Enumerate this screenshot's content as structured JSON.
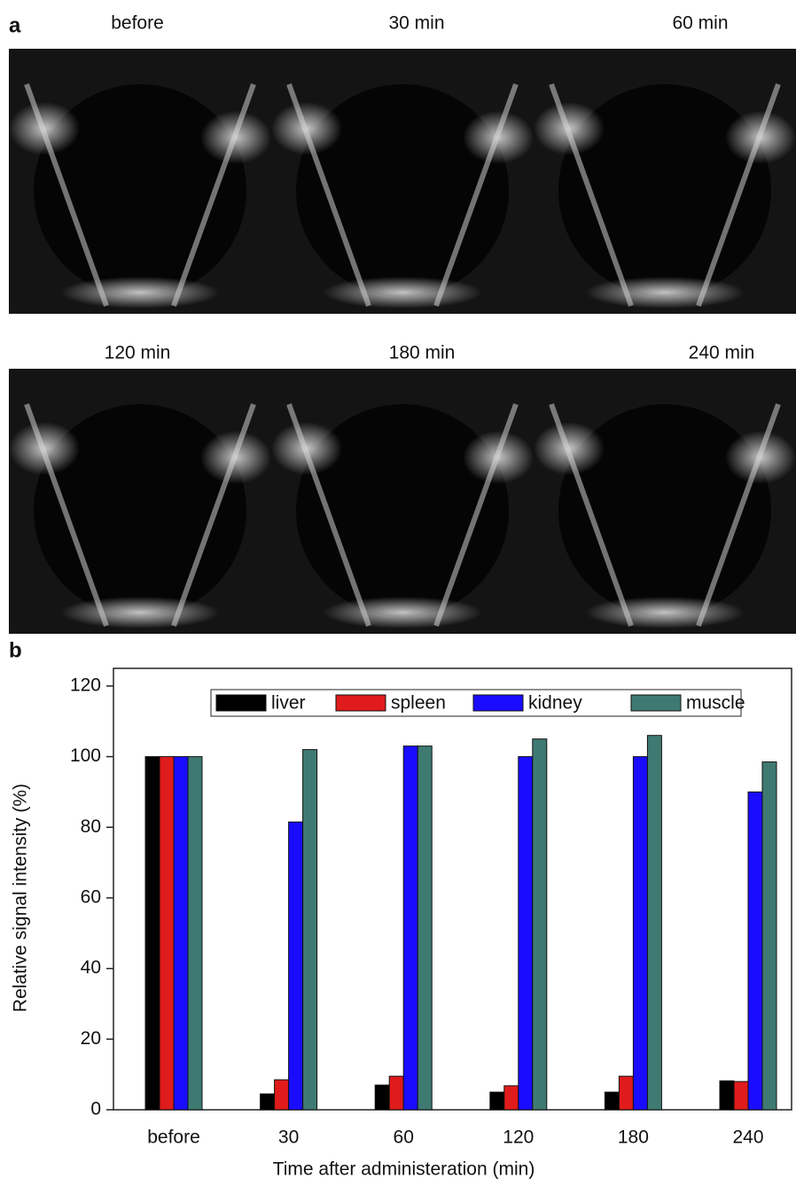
{
  "panel_a": {
    "label": "a",
    "titles": [
      "before",
      "30 min",
      "60 min",
      "120 min",
      "180 min",
      "240 min"
    ]
  },
  "panel_b": {
    "label": "b"
  },
  "chart_data": {
    "type": "bar",
    "x_label": "Time after administeration (min)",
    "y_label": "Relative signal intensity (%)",
    "categories": [
      "before",
      "30",
      "60",
      "120",
      "180",
      "240"
    ],
    "series": [
      {
        "name": "liver",
        "color": "#000000",
        "values": [
          100,
          4.5,
          7,
          5,
          5,
          8.2
        ]
      },
      {
        "name": "spleen",
        "color": "#e01b1b",
        "values": [
          100,
          8.5,
          9.5,
          6.8,
          9.5,
          8
        ]
      },
      {
        "name": "kidney",
        "color": "#1a0dff",
        "values": [
          100,
          81.5,
          103,
          100,
          100,
          90
        ]
      },
      {
        "name": "muscle",
        "color": "#3f7a72",
        "values": [
          100,
          102,
          103,
          105,
          106,
          98.5
        ]
      }
    ],
    "ylim": [
      0,
      125
    ],
    "yticks": [
      0,
      20,
      40,
      60,
      80,
      100,
      120
    ],
    "legend": "top"
  }
}
